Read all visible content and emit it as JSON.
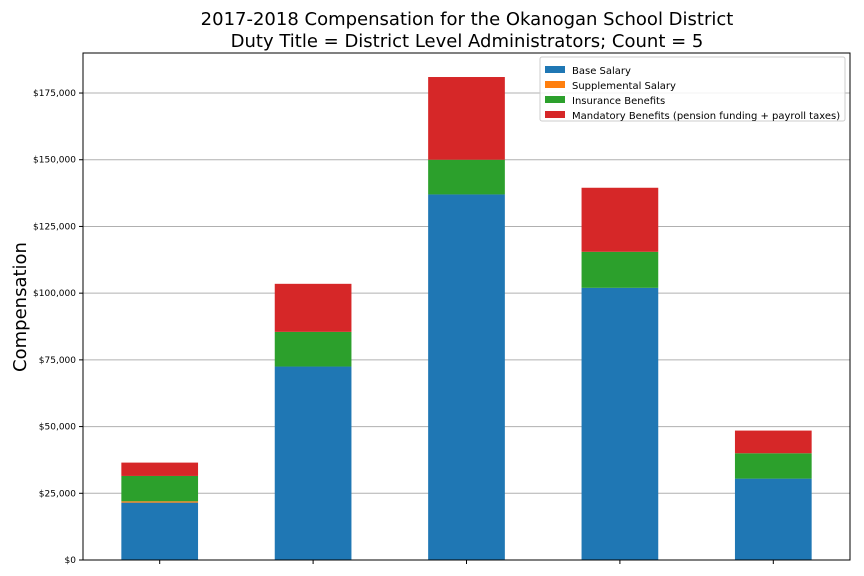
{
  "chart_data": {
    "type": "bar",
    "stacked": true,
    "title_line1": "2017-2018 Compensation for the Okanogan School District",
    "title_line2": "Duty Title = District Level Administrators; Count = 5",
    "xlabel": "",
    "ylabel": "Compensation",
    "ylim": [
      0,
      190000
    ],
    "yticks": [
      0,
      25000,
      50000,
      75000,
      100000,
      125000,
      150000,
      175000
    ],
    "ytick_labels": [
      "$0",
      "$25,000",
      "$50,000",
      "$75,000",
      "$100,000",
      "$125,000",
      "$150,000",
      "$175,000"
    ],
    "categories": [
      "",
      "",
      "",
      "",
      ""
    ],
    "grid": "horizontal",
    "legend_position": "top-right",
    "series": [
      {
        "name": "Base Salary",
        "color": "#1f77b4",
        "values": [
          21500,
          72500,
          137000,
          102000,
          30500
        ]
      },
      {
        "name": "Supplemental Salary",
        "color": "#ff7f0e",
        "values": [
          500,
          0,
          0,
          0,
          0
        ]
      },
      {
        "name": "Insurance Benefits",
        "color": "#2ca02c",
        "values": [
          9500,
          13000,
          13000,
          13500,
          9500
        ]
      },
      {
        "name": "Mandatory Benefits (pension funding + payroll taxes)",
        "color": "#d62728",
        "values": [
          5000,
          18000,
          31000,
          24000,
          8500
        ]
      }
    ]
  }
}
